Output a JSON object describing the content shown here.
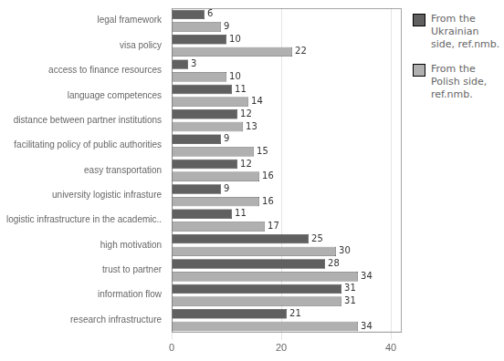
{
  "chart_data": {
    "type": "bar",
    "orientation": "horizontal",
    "categories": [
      "research infrastructure",
      "information flow",
      "trust to partner",
      "high motivation",
      "logistic infrastructure in the academic..",
      "university logistic infrasture",
      "easy transportation",
      "facilitating policy of public authorities",
      "distance between partner institutions",
      "language competences",
      "access to finance resources",
      "visa policy",
      "legal framework"
    ],
    "series": [
      {
        "name": "From the\nUkrainian\nside, ref.nmb.",
        "color": "#606060",
        "values": [
          21,
          31,
          28,
          25,
          11,
          9,
          12,
          9,
          12,
          11,
          3,
          10,
          6
        ]
      },
      {
        "name": "From the\nPolish side,\nref.nmb.",
        "color": "#b0b0b0",
        "values": [
          34,
          31,
          34,
          30,
          17,
          16,
          16,
          15,
          13,
          14,
          10,
          22,
          9
        ]
      }
    ],
    "xlim": [
      0,
      42
    ],
    "xticks": [
      0,
      20,
      40
    ],
    "grid": true,
    "legend": "right",
    "data_labels": true
  }
}
